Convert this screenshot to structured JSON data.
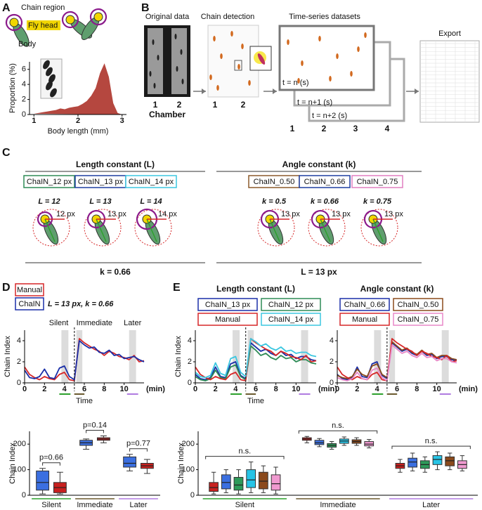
{
  "panels": {
    "a": {
      "label": "A",
      "chain_region": "Chain region",
      "fly_head": "Fly head",
      "body": "Body"
    },
    "b": {
      "label": "B",
      "original_data": "Original data",
      "chamber_numbers": [
        "1",
        "2"
      ],
      "chamber": "Chamber",
      "chain_detection": "Chain detection",
      "detection_numbers": [
        "1",
        "2"
      ],
      "time_series": "Time-series datasets",
      "frames": [
        "t = n (s)",
        "t = n+1 (s)",
        "t = n+2 (s)"
      ],
      "dataset_numbers": [
        "1",
        "2",
        "3",
        "4"
      ],
      "export": "Export"
    },
    "c": {
      "label": "C",
      "groups": [
        {
          "title": "Length constant (L)",
          "fixed": "k = 0.66",
          "conditions": [
            {
              "name": "ChaIN_12 px",
              "color": "#2e8b57",
              "param": "L = 12",
              "radius": "12 px"
            },
            {
              "name": "ChaIN_13 px",
              "color": "#1f3fa0",
              "param": "L = 13",
              "radius": "13 px"
            },
            {
              "name": "ChaIN_14 px",
              "color": "#3cc7e0",
              "param": "L = 14",
              "radius": "14 px"
            }
          ]
        },
        {
          "title": "Angle constant (k)",
          "fixed": "L = 13 px",
          "conditions": [
            {
              "name": "ChaIN_0.50",
              "color": "#8b5a2b",
              "param": "k = 0.5",
              "radius": "13 px"
            },
            {
              "name": "ChaIN_0.66",
              "color": "#1f3fa0",
              "param": "k = 0.66",
              "radius": "13 px"
            },
            {
              "name": "ChaIN_0.75",
              "color": "#e07fc0",
              "param": "k = 0.75",
              "radius": "13 px"
            }
          ]
        }
      ]
    },
    "d": {
      "label": "D"
    },
    "e": {
      "label": "E"
    }
  },
  "chart_data": [
    {
      "type": "area",
      "x": [
        1.0,
        1.1,
        1.2,
        1.3,
        1.4,
        1.5,
        1.6,
        1.7,
        1.8,
        1.9,
        2.0,
        2.1,
        2.2,
        2.3,
        2.4,
        2.5,
        2.6,
        2.7,
        2.8,
        2.9,
        3.0
      ],
      "values": [
        0.1,
        0.2,
        0.3,
        0.4,
        0.5,
        0.6,
        0.8,
        0.7,
        0.9,
        1.0,
        1.1,
        1.4,
        1.8,
        2.5,
        3.5,
        5.5,
        6.8,
        5.0,
        1.5,
        0.2,
        0
      ],
      "color": "#b5473f",
      "xlim": [
        0.9,
        3.1
      ],
      "ylim": [
        0,
        7
      ],
      "xticks": [
        1,
        2,
        3
      ],
      "yticks": [
        0,
        2,
        4,
        6
      ],
      "x_label": "Body length (mm)",
      "y_label": "Proportion (%)"
    },
    {
      "type": "line",
      "x": [
        0,
        0.5,
        1,
        1.5,
        2,
        2.5,
        3,
        3.5,
        4,
        4.5,
        5,
        5.5,
        6,
        6.5,
        7,
        7.5,
        8,
        8.5,
        9,
        9.5,
        10,
        10.5,
        11,
        11.5,
        12
      ],
      "series": [
        {
          "name": "Manual",
          "color": "#d62728",
          "values": [
            1.5,
            0.8,
            0.5,
            0.3,
            0.6,
            0.4,
            0.3,
            0.8,
            1.0,
            0.3,
            0.2,
            4.2,
            3.8,
            3.5,
            3.2,
            3.0,
            2.6,
            3.0,
            2.8,
            2.5,
            2.4,
            2.2,
            2.6,
            2.0,
            2.1
          ]
        },
        {
          "name": "ChaIN",
          "color": "#1a2fa8",
          "values": [
            1.2,
            0.5,
            0.4,
            0.6,
            1.3,
            0.5,
            0.4,
            1.4,
            1.6,
            0.6,
            0.3,
            4.0,
            3.6,
            3.3,
            3.4,
            2.9,
            2.8,
            3.1,
            2.6,
            2.7,
            2.3,
            2.4,
            2.5,
            2.2,
            2.0
          ]
        }
      ],
      "annotation": "L = 13 px, k = 0.66",
      "xlim": [
        0,
        12
      ],
      "ylim": [
        0,
        5
      ],
      "xticks": [
        0,
        2,
        4,
        6,
        8,
        10
      ],
      "yticks": [
        0,
        2,
        4
      ],
      "x_label": "Time",
      "x_unit": "(min)",
      "y_label": "Chain Index",
      "event_x": 5,
      "highlights": [
        {
          "from": 3.7,
          "to": 4.4,
          "label": "Silent",
          "color": "#2ca02c"
        },
        {
          "from": 5.2,
          "to": 5.8,
          "label": "Immediate",
          "color": "#6b5a2e"
        },
        {
          "from": 10.5,
          "to": 11.2,
          "label": "Later",
          "color": "#b07be0"
        }
      ]
    },
    {
      "type": "box",
      "categories": [
        "Silent",
        "Immediate",
        "Later"
      ],
      "category_colors": [
        "#2ca02c",
        "#6b5a2e",
        "#b07be0"
      ],
      "series": [
        {
          "color": "#3b6fe0",
          "min": [
            5,
            180,
            95
          ],
          "q1": [
            20,
            195,
            110
          ],
          "median": [
            50,
            205,
            125
          ],
          "q3": [
            95,
            215,
            150
          ],
          "max": [
            105,
            220,
            160
          ]
        },
        {
          "color": "#c8201e",
          "min": [
            5,
            205,
            85
          ],
          "q1": [
            10,
            215,
            105
          ],
          "median": [
            30,
            220,
            115
          ],
          "q3": [
            50,
            225,
            125
          ],
          "max": [
            90,
            232,
            140
          ]
        }
      ],
      "ylim": [
        0,
        250
      ],
      "yticks": [
        0,
        100,
        200
      ],
      "y_label": "Chain Index",
      "annotations": [
        "p=0.66",
        "p=0.14",
        "p=0.77"
      ]
    },
    {
      "type": "line",
      "title": "Length constant (L)",
      "x": [
        0,
        0.5,
        1,
        1.5,
        2,
        2.5,
        3,
        3.5,
        4,
        4.5,
        5,
        5.5,
        6,
        6.5,
        7,
        7.5,
        8,
        8.5,
        9,
        9.5,
        10,
        10.5,
        11,
        11.5,
        12
      ],
      "series": [
        {
          "name": "ChaIN_13 px",
          "color": "#1a2fa8",
          "values": [
            0.8,
            0.4,
            0.3,
            0.5,
            1.5,
            0.6,
            0.5,
            1.8,
            2.0,
            0.7,
            0.4,
            3.8,
            3.4,
            3.0,
            3.2,
            2.8,
            2.6,
            3.0,
            2.6,
            2.7,
            2.3,
            2.5,
            2.5,
            2.2,
            2.1
          ]
        },
        {
          "name": "ChaIN_12 px",
          "color": "#2e8b57",
          "values": [
            0.6,
            0.3,
            0.2,
            0.4,
            1.2,
            0.5,
            0.4,
            1.5,
            1.7,
            0.6,
            0.3,
            3.5,
            3.1,
            2.6,
            2.8,
            2.4,
            2.2,
            2.6,
            2.3,
            2.4,
            2.0,
            2.2,
            2.2,
            1.9,
            1.8
          ]
        },
        {
          "name": "Manual",
          "color": "#d62728",
          "values": [
            1.5,
            0.8,
            0.5,
            0.3,
            0.6,
            0.4,
            0.3,
            0.8,
            1.0,
            0.3,
            0.2,
            4.2,
            3.8,
            3.5,
            3.2,
            3.0,
            2.6,
            3.0,
            2.8,
            2.5,
            2.4,
            2.2,
            2.6,
            2.0,
            2.1
          ]
        },
        {
          "name": "ChaIN_14 px",
          "color": "#3cc7e0",
          "values": [
            1.0,
            0.6,
            0.5,
            0.7,
            1.9,
            0.9,
            0.7,
            2.3,
            2.5,
            1.0,
            0.6,
            4.2,
            3.9,
            3.5,
            3.7,
            3.3,
            3.1,
            3.4,
            3.0,
            3.1,
            2.8,
            2.9,
            2.9,
            2.6,
            2.5
          ]
        }
      ],
      "xlim": [
        0,
        12
      ],
      "ylim": [
        0,
        5
      ],
      "xticks": [
        0,
        2,
        4,
        6,
        8,
        10
      ],
      "yticks": [
        0,
        2,
        4
      ],
      "x_label": "Time",
      "x_unit": "(min)",
      "y_label": "Chain Index",
      "event_x": 5,
      "highlights": [
        {
          "from": 3.7,
          "to": 4.4,
          "color": "#2ca02c"
        },
        {
          "from": 5.2,
          "to": 5.8,
          "color": "#6b5a2e"
        },
        {
          "from": 10.5,
          "to": 11.2,
          "color": "#b07be0"
        }
      ]
    },
    {
      "type": "line",
      "title": "Angle constant (k)",
      "x": [
        0,
        0.5,
        1,
        1.5,
        2,
        2.5,
        3,
        3.5,
        4,
        4.5,
        5,
        5.5,
        6,
        6.5,
        7,
        7.5,
        8,
        8.5,
        9,
        9.5,
        10,
        10.5,
        11,
        11.5,
        12
      ],
      "series": [
        {
          "name": "ChaIN_0.66",
          "color": "#1a2fa8",
          "values": [
            0.8,
            0.4,
            0.3,
            0.5,
            1.5,
            0.6,
            0.5,
            1.8,
            2.0,
            0.7,
            0.4,
            3.8,
            3.4,
            3.0,
            3.2,
            2.8,
            2.6,
            3.0,
            2.6,
            2.7,
            2.3,
            2.5,
            2.5,
            2.2,
            2.1
          ]
        },
        {
          "name": "ChaIN_0.50",
          "color": "#8b4a1c",
          "values": [
            0.7,
            0.5,
            0.4,
            0.6,
            1.3,
            0.8,
            0.6,
            1.6,
            1.8,
            0.8,
            0.5,
            3.9,
            3.5,
            3.1,
            3.3,
            2.9,
            2.7,
            3.1,
            2.7,
            2.8,
            2.4,
            2.6,
            2.6,
            2.3,
            2.2
          ]
        },
        {
          "name": "Manual",
          "color": "#d62728",
          "values": [
            1.5,
            0.8,
            0.5,
            0.3,
            0.6,
            0.4,
            0.3,
            0.8,
            1.0,
            0.3,
            0.2,
            4.2,
            3.8,
            3.5,
            3.2,
            3.0,
            2.6,
            3.0,
            2.8,
            2.5,
            2.4,
            2.2,
            2.6,
            2.0,
            2.1
          ]
        },
        {
          "name": "ChaIN_0.75",
          "color": "#e889c8",
          "values": [
            0.5,
            0.3,
            0.2,
            0.4,
            1.0,
            0.4,
            0.3,
            1.2,
            1.4,
            0.5,
            0.2,
            3.6,
            3.2,
            2.8,
            3.0,
            2.6,
            2.4,
            2.8,
            2.4,
            2.5,
            2.1,
            2.3,
            2.3,
            2.0,
            1.9
          ]
        }
      ],
      "xlim": [
        0,
        12
      ],
      "ylim": [
        0,
        5
      ],
      "xticks": [
        0,
        2,
        4,
        6,
        8,
        10
      ],
      "yticks": [
        0,
        2,
        4
      ],
      "x_unit": "(min)",
      "event_x": 5,
      "highlights": [
        {
          "from": 3.7,
          "to": 4.4,
          "color": "#2ca02c"
        },
        {
          "from": 5.2,
          "to": 5.8,
          "color": "#6b5a2e"
        },
        {
          "from": 10.5,
          "to": 11.2,
          "color": "#b07be0"
        }
      ]
    },
    {
      "type": "box",
      "categories": [
        "Silent",
        "Immediate",
        "Later"
      ],
      "category_colors": [
        "#2ca02c",
        "#6b5a2e",
        "#b07be0"
      ],
      "series": [
        {
          "color": "#c8201e",
          "min": [
            5,
            205,
            90
          ],
          "q1": [
            15,
            215,
            105
          ],
          "median": [
            30,
            220,
            115
          ],
          "q3": [
            50,
            225,
            125
          ],
          "max": [
            90,
            230,
            140
          ]
        },
        {
          "color": "#3b6fe0",
          "min": [
            10,
            190,
            95
          ],
          "q1": [
            25,
            198,
            110
          ],
          "median": [
            50,
            205,
            130
          ],
          "q3": [
            80,
            215,
            145
          ],
          "max": [
            100,
            222,
            165
          ]
        },
        {
          "color": "#2e9a5a",
          "min": [
            5,
            180,
            90
          ],
          "q1": [
            20,
            188,
            105
          ],
          "median": [
            40,
            195,
            120
          ],
          "q3": [
            70,
            202,
            135
          ],
          "max": [
            100,
            210,
            150
          ]
        },
        {
          "color": "#27c4e6",
          "min": [
            10,
            195,
            100
          ],
          "q1": [
            30,
            203,
            120
          ],
          "median": [
            60,
            212,
            140
          ],
          "q3": [
            100,
            220,
            155
          ],
          "max": [
            130,
            228,
            170
          ]
        },
        {
          "color": "#8b4a1c",
          "min": [
            10,
            195,
            100
          ],
          "q1": [
            25,
            203,
            115
          ],
          "median": [
            55,
            210,
            135
          ],
          "q3": [
            90,
            217,
            150
          ],
          "max": [
            115,
            225,
            165
          ]
        },
        {
          "color": "#f09ad0",
          "min": [
            5,
            185,
            95
          ],
          "q1": [
            20,
            193,
            105
          ],
          "median": [
            45,
            200,
            120
          ],
          "q3": [
            80,
            210,
            135
          ],
          "max": [
            110,
            218,
            155
          ]
        }
      ],
      "ylim": [
        0,
        250
      ],
      "yticks": [
        0,
        100,
        200
      ],
      "y_label": "Chain Index",
      "annotations": [
        "n.s.",
        "n.s.",
        "n.s."
      ]
    }
  ]
}
